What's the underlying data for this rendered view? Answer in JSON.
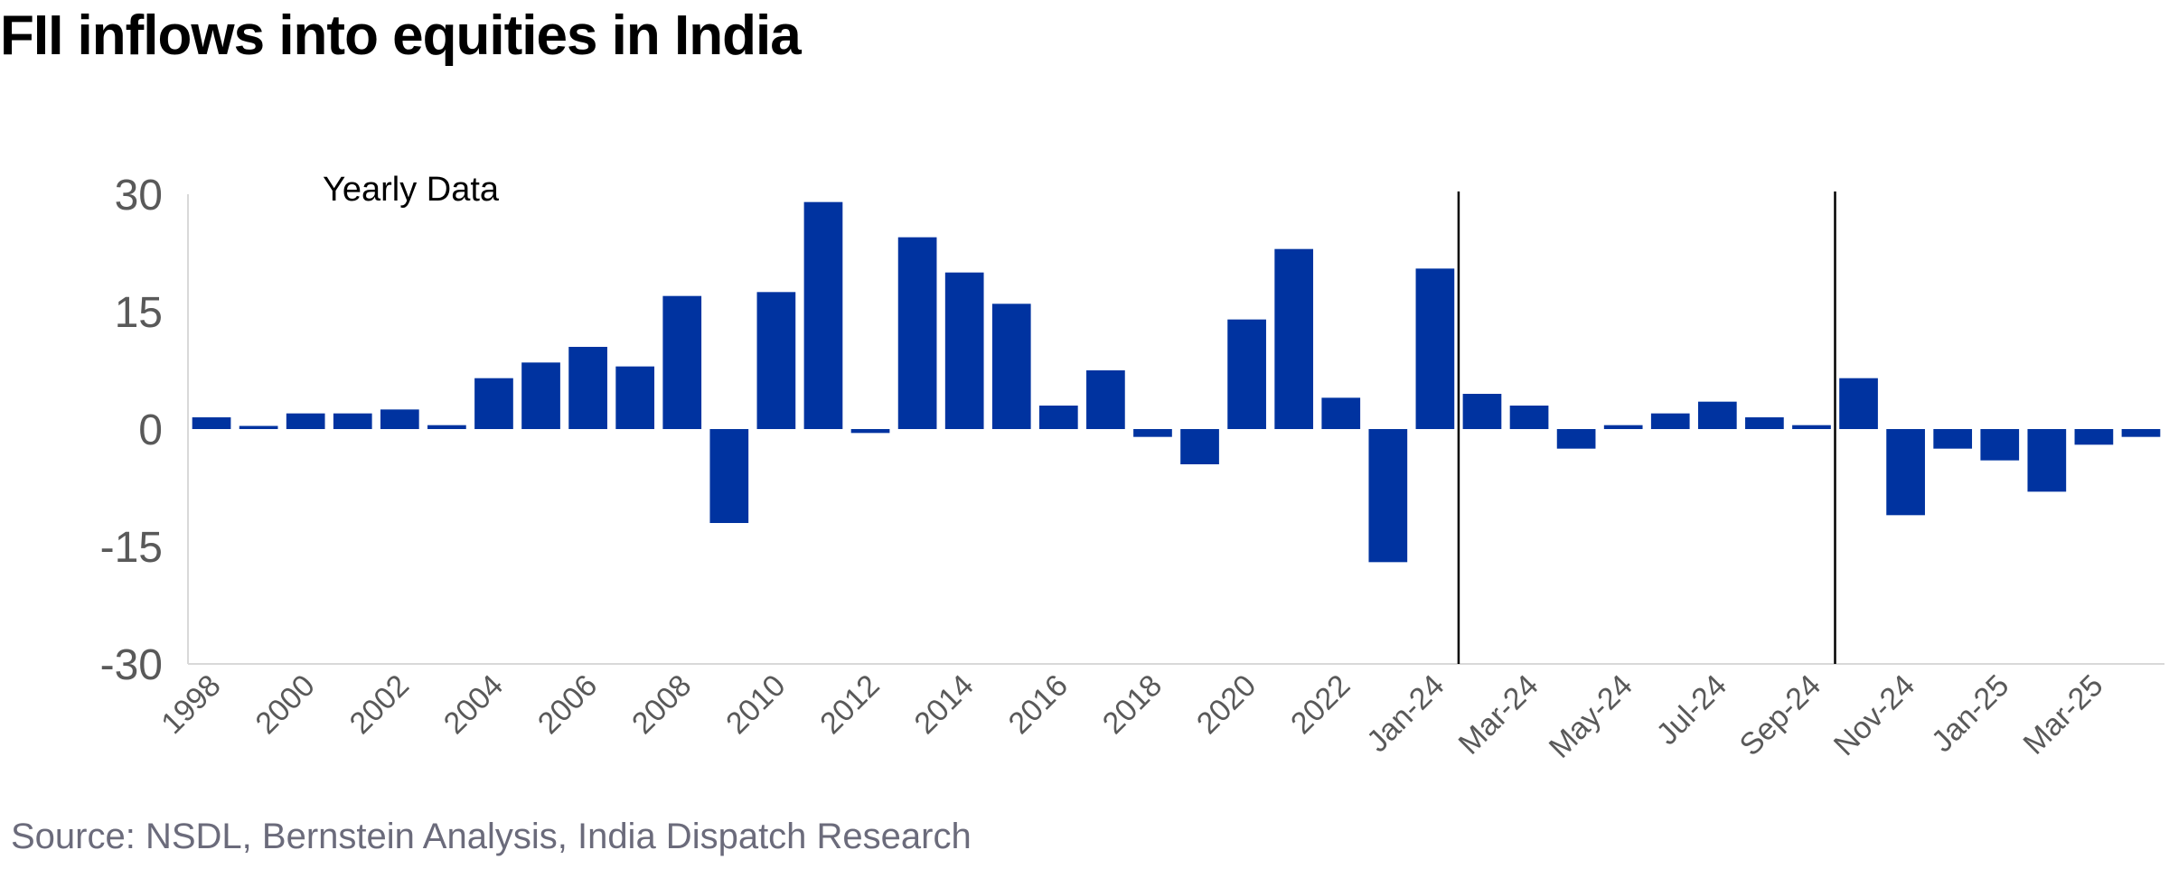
{
  "title": "FII inflows into equities in India",
  "source": "Source: NSDL, Bernstein Analysis, India Dispatch Research",
  "colors": {
    "bar": "#0033a0",
    "axis": "#d9d9d9",
    "tick_text": "#595959",
    "divider": "#000000"
  },
  "chart_data": {
    "type": "bar",
    "title": "FII inflows into equities in India",
    "annotation": "Yearly Data",
    "xlabel": "",
    "ylabel": "",
    "ylim": [
      -30,
      30
    ],
    "yticks": [
      "30",
      "15",
      "0",
      "-15",
      "-30"
    ],
    "ytick_values": [
      30,
      15,
      0,
      -15,
      -30
    ],
    "grid": false,
    "categories": [
      "1998",
      "1999",
      "2000",
      "2001",
      "2002",
      "2003",
      "2004",
      "2005",
      "2006",
      "2007",
      "2008",
      "2009",
      "2010",
      "2011",
      "2012",
      "2013",
      "2014",
      "2015",
      "2016",
      "2017",
      "2018",
      "2019",
      "2020",
      "2021",
      "2022",
      "2023",
      "Jan-24",
      "Feb-24",
      "Mar-24",
      "Apr-24",
      "May-24",
      "Jun-24",
      "Jul-24",
      "Aug-24",
      "Sep-24",
      "Oct-24",
      "Nov-24",
      "Dec-24",
      "Jan-25",
      "Feb-25",
      "Mar-25",
      "Apr-25"
    ],
    "visible_tick_labels": [
      "1998",
      "2000",
      "2002",
      "2004",
      "2006",
      "2008",
      "2010",
      "2012",
      "2014",
      "2016",
      "2018",
      "2020",
      "2022",
      "Jan-24",
      "Mar-24",
      "May-24",
      "Jul-24",
      "Sep-24",
      "Nov-24",
      "Jan-25",
      "Mar-25"
    ],
    "values": [
      1.5,
      0.4,
      2.0,
      2.0,
      2.5,
      0.5,
      6.5,
      8.5,
      10.5,
      8.0,
      17.0,
      -12.0,
      17.5,
      29.0,
      -0.5,
      24.5,
      20.0,
      16.0,
      3.0,
      7.5,
      -1.0,
      -4.5,
      14.0,
      23.0,
      4.0,
      -17.0,
      20.5,
      4.5,
      3.0,
      -2.5,
      0.5,
      2.0,
      3.5,
      1.5,
      0.5,
      6.5,
      -11.0,
      -2.5,
      -4.0,
      -8.0,
      -2.0,
      -1.0
    ],
    "dividers_after": [
      "Jan-24",
      "Sep-24"
    ]
  }
}
